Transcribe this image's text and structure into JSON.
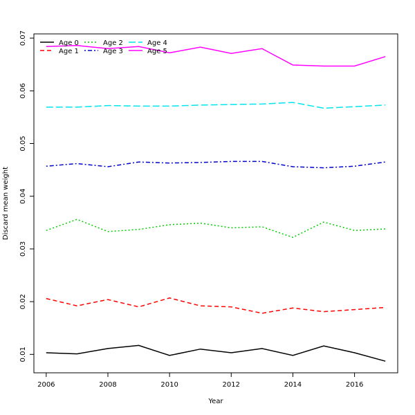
{
  "chart_data": {
    "type": "line",
    "title": "",
    "xlabel": "Year",
    "ylabel": "Discard mean weight",
    "xlim": [
      2005.6,
      2017.4
    ],
    "ylim": [
      0.0065,
      0.0708
    ],
    "xticks": [
      2006,
      2008,
      2010,
      2012,
      2014,
      2016
    ],
    "yticks": [
      0.01,
      0.02,
      0.03,
      0.04,
      0.05,
      0.06,
      0.07
    ],
    "ytick_labels": [
      "0.01",
      "0.02",
      "0.03",
      "0.04",
      "0.05",
      "0.06",
      "0.07"
    ],
    "grid": false,
    "legend_position": "top-left",
    "x": [
      2006,
      2007,
      2008,
      2009,
      2010,
      2011,
      2012,
      2013,
      2014,
      2015,
      2016,
      2017
    ],
    "series": [
      {
        "name": "Age 0",
        "color": "#000000",
        "dash": "solid",
        "values": [
          0.0103,
          0.0101,
          0.0111,
          0.0117,
          0.0098,
          0.011,
          0.0103,
          0.0111,
          0.0098,
          0.0116,
          0.0103,
          0.0087
        ]
      },
      {
        "name": "Age 1",
        "color": "#ff0000",
        "dash": "dashed",
        "values": [
          0.0206,
          0.0192,
          0.0204,
          0.019,
          0.0207,
          0.0192,
          0.019,
          0.0178,
          0.0188,
          0.0181,
          0.0185,
          0.0189
        ]
      },
      {
        "name": "Age 2",
        "color": "#00cd00",
        "dash": "dotted",
        "values": [
          0.0335,
          0.0356,
          0.0333,
          0.0337,
          0.0346,
          0.0349,
          0.034,
          0.0342,
          0.0322,
          0.0351,
          0.0335,
          0.0338
        ]
      },
      {
        "name": "Age 3",
        "color": "#0000cd",
        "dash": "dotdash",
        "values": [
          0.0457,
          0.0462,
          0.0456,
          0.0465,
          0.0463,
          0.0464,
          0.0466,
          0.0466,
          0.0456,
          0.0454,
          0.0457,
          0.0465
        ]
      },
      {
        "name": "Age 4",
        "color": "#00e5ee",
        "dash": "longdash",
        "values": [
          0.0569,
          0.0569,
          0.0572,
          0.0571,
          0.0571,
          0.0573,
          0.0574,
          0.0575,
          0.0578,
          0.0567,
          0.057,
          0.0573
        ]
      },
      {
        "name": "Age 5",
        "color": "#ff00ff",
        "dash": "solid",
        "values": [
          0.0684,
          0.0686,
          0.068,
          0.0684,
          0.0672,
          0.0683,
          0.0671,
          0.068,
          0.0649,
          0.0647,
          0.0647,
          0.0665
        ]
      }
    ]
  }
}
